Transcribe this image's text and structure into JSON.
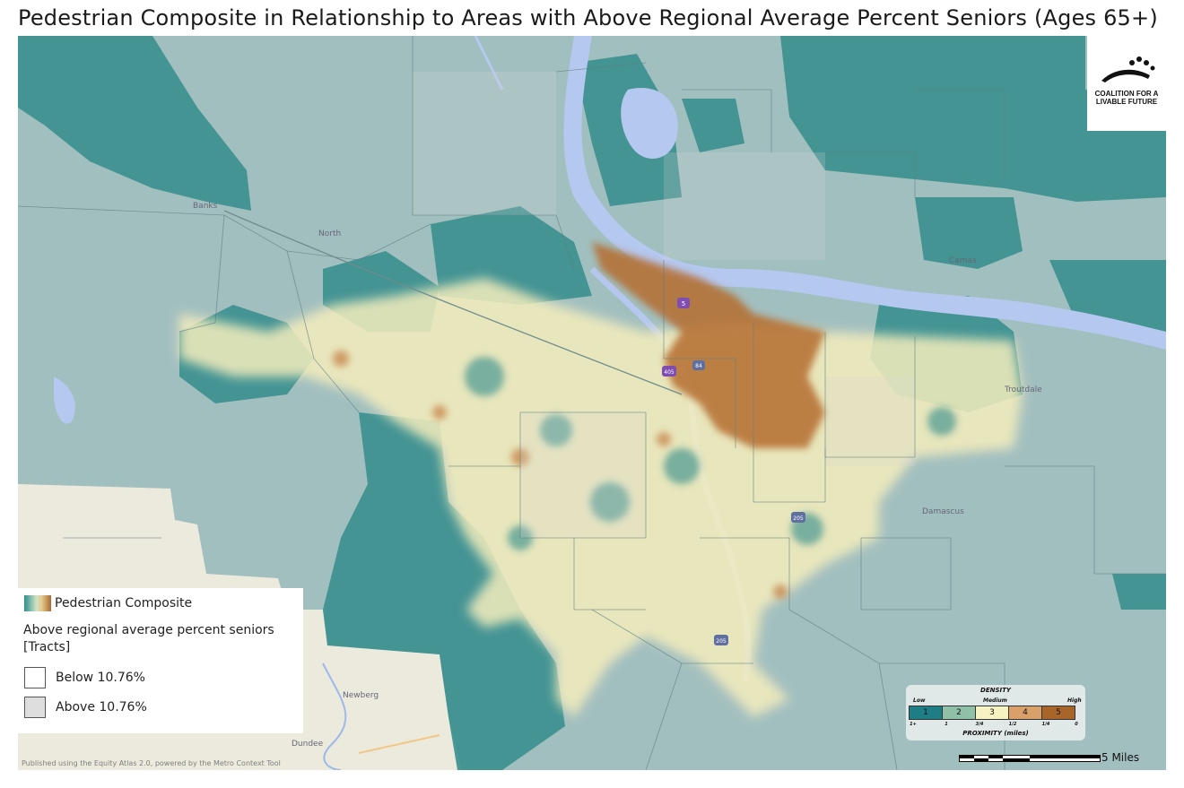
{
  "title": "Pedestrian Composite in Relationship to Areas with Above Regional Average Percent Seniors (Ages 65+)",
  "logo": {
    "text_line1": "COALITION FOR A",
    "text_line2": "LIVABLE FUTURE",
    "icon": "coalition-logo-icon"
  },
  "legend": {
    "layer_name": "Pedestrian Composite",
    "subtitle": "Above regional average percent seniors [Tracts]",
    "items": [
      {
        "label": "Below 10.76%",
        "fill": "#ffffff"
      },
      {
        "label": "Above 10.76%",
        "fill": "#dedede"
      }
    ]
  },
  "density_legend": {
    "title": "DENSITY",
    "low": "Low",
    "medium": "Medium",
    "high": "High",
    "classes": [
      {
        "value": "1",
        "color": "#1f7d86"
      },
      {
        "value": "2",
        "color": "#8fc0a8"
      },
      {
        "value": "3",
        "color": "#f6f2c2"
      },
      {
        "value": "4",
        "color": "#d9a06a"
      },
      {
        "value": "5",
        "color": "#a8652a"
      }
    ],
    "proximity_ticks": [
      "1+",
      "1",
      "3/4",
      "1/2",
      "1/4",
      "0"
    ],
    "proximity_label": "PROXIMITY (miles)"
  },
  "scale": {
    "label": "5 Miles"
  },
  "publisher_note": "Published using the Equity Atlas 2.0, powered by the Metro Context Tool",
  "place_labels": {
    "banks": "Banks",
    "north_plains": "North",
    "camas": "Camas",
    "newberg": "Newberg",
    "dundee": "Dundee",
    "damascus": "Damascus",
    "troutdale": "Troutdale"
  },
  "route_shields": {
    "i5": "5",
    "i405": "405",
    "i84": "84",
    "i205_south": "205",
    "i205_north": "205"
  },
  "colors": {
    "teal_tract": "#3a8f8f",
    "base": "#a2bfbf",
    "river": "#b5c8ef",
    "density_high": "#b56c2e",
    "density_medium": "#f4edbc"
  }
}
